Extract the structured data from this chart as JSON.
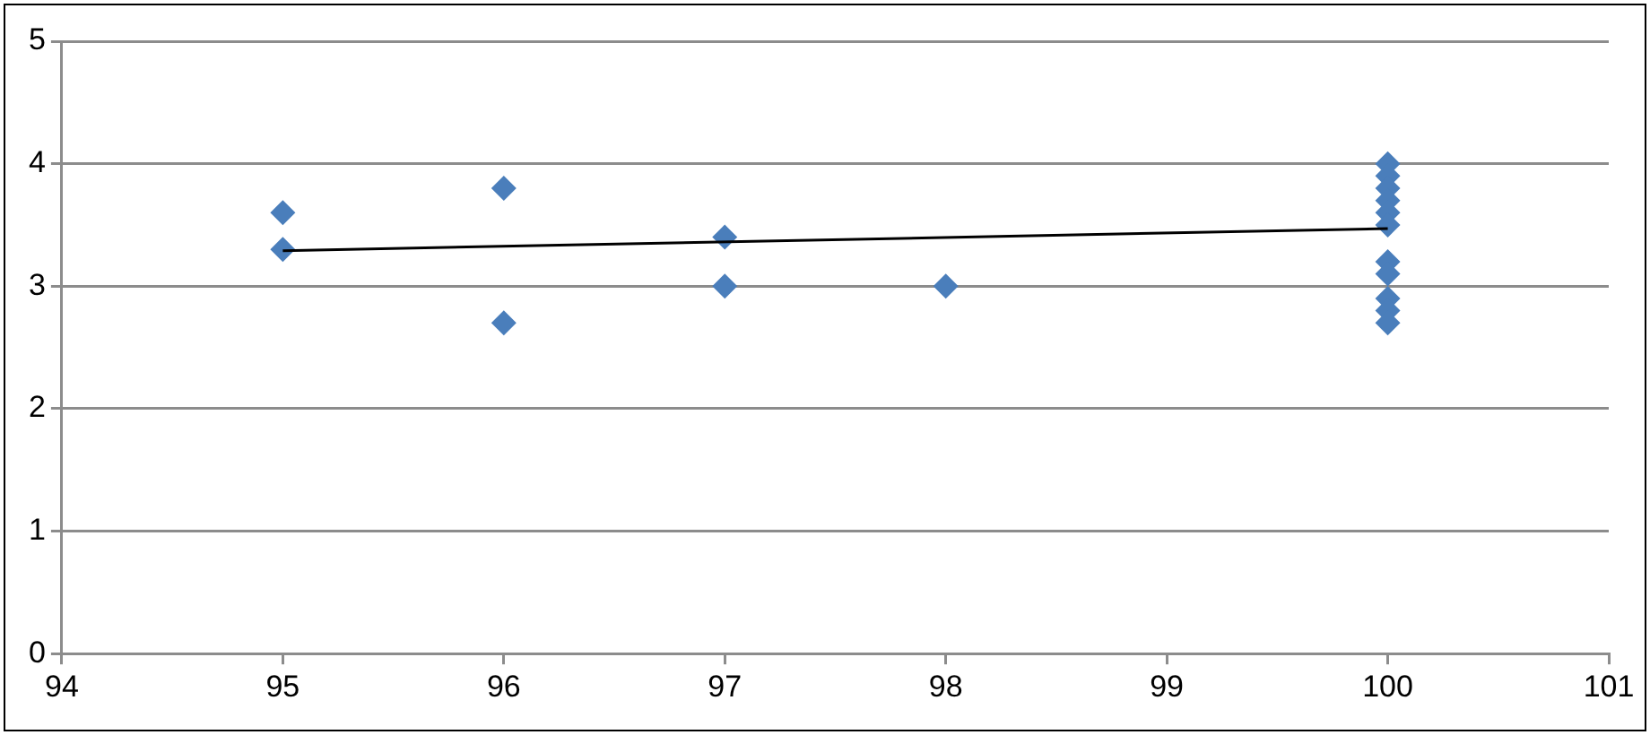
{
  "chart_data": {
    "type": "scatter",
    "marker": "diamond",
    "grid": "y",
    "legend": false,
    "xlim": [
      94,
      101
    ],
    "xticks": [
      94,
      95,
      96,
      97,
      98,
      99,
      100,
      101
    ],
    "ylim": [
      0,
      5
    ],
    "yticks": [
      0,
      1,
      2,
      3,
      4,
      5
    ],
    "series": [
      {
        "color": "#4a7ebb",
        "x": [
          95,
          95,
          96,
          96,
          97,
          97,
          98,
          100,
          100,
          100,
          100,
          100,
          100,
          100,
          100,
          100,
          100,
          100
        ],
        "values": [
          3.6,
          3.3,
          3.8,
          2.7,
          3.4,
          3.0,
          3.0,
          4.0,
          3.9,
          3.8,
          3.7,
          3.6,
          3.5,
          3.2,
          3.1,
          2.9,
          2.8,
          2.7
        ]
      },
      {
        "type": "line",
        "color": "#000000",
        "marker": "none",
        "x": [
          95,
          100
        ],
        "values": [
          3.29,
          3.47
        ]
      }
    ]
  }
}
